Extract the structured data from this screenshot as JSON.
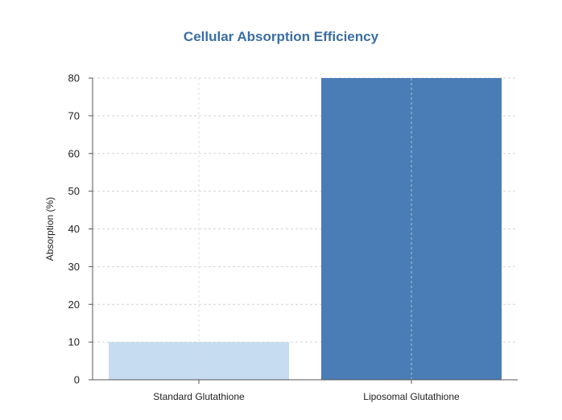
{
  "chart_data": {
    "type": "bar",
    "title": "Cellular Absorption Efficiency",
    "xlabel": "",
    "ylabel": "Absorption (%)",
    "categories": [
      "Standard Glutathione",
      "Liposomal Glutathione"
    ],
    "values": [
      10,
      80
    ],
    "bar_colors": [
      "#c6dcf1",
      "#4a7db5"
    ],
    "title_color": "#3a6ea5",
    "ylim": [
      0,
      80
    ],
    "yticks": [
      0,
      10,
      20,
      30,
      40,
      50,
      60,
      70,
      80
    ],
    "grid": true,
    "legend": "none"
  }
}
